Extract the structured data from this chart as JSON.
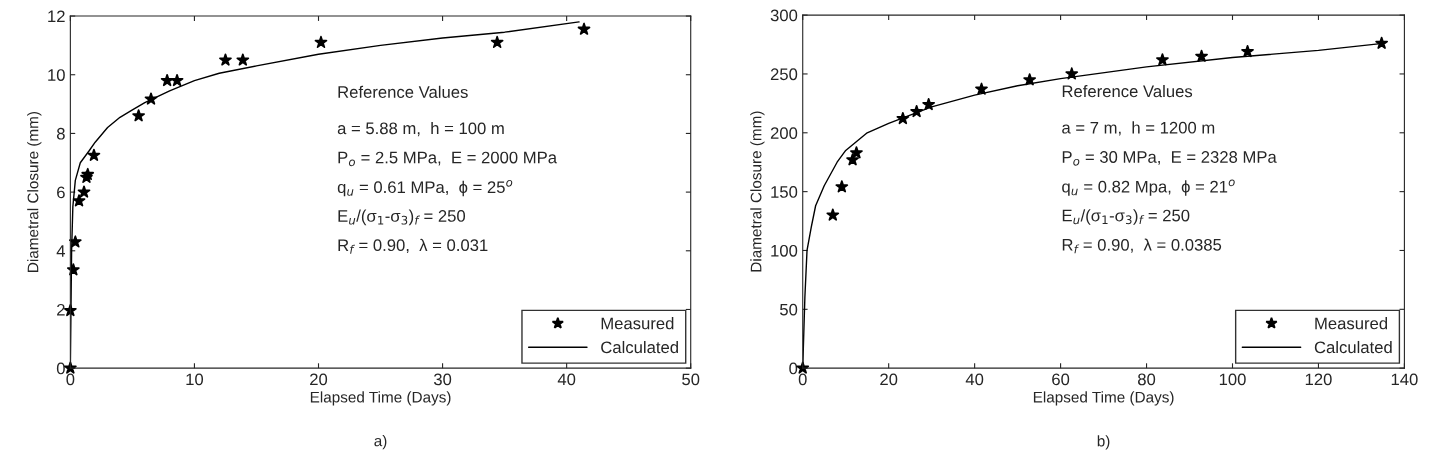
{
  "chart_data": [
    {
      "type": "scatter",
      "xlabel": "Elapsed Time (Days)",
      "ylabel": "Diametral Closure (mm)",
      "xlim": [
        0,
        50
      ],
      "xticks": [
        0,
        10,
        20,
        30,
        40,
        50
      ],
      "ylim": [
        0,
        12
      ],
      "yticks": [
        0,
        2,
        4,
        6,
        8,
        10,
        12
      ],
      "grid": false,
      "legend": "bottom right",
      "series": [
        {
          "name": "Measured",
          "marker": "star",
          "color": "#000000",
          "x": [
            0,
            0,
            0.24,
            0.4,
            0.7,
            1.1,
            1.3,
            1.4,
            1.9,
            5.5,
            6.5,
            7.8,
            8.6,
            12.5,
            13.9,
            20.2,
            34.4,
            41.4
          ],
          "values": [
            0,
            1.96,
            3.35,
            4.3,
            5.7,
            6.0,
            6.5,
            6.6,
            7.25,
            8.6,
            9.17,
            9.8,
            9.8,
            10.5,
            10.5,
            11.1,
            11.1,
            11.55
          ]
        },
        {
          "name": "Calculated",
          "type": "line",
          "marker": "none",
          "line_style": "solid",
          "color": "#000000",
          "x": [
            0,
            0.1,
            0.2,
            0.4,
            0.8,
            1.5,
            2,
            3,
            4,
            5,
            6,
            8,
            10,
            12,
            15,
            20,
            25,
            30,
            35,
            41
          ],
          "values": [
            0,
            4.0,
            5.5,
            6.4,
            7.0,
            7.4,
            7.7,
            8.2,
            8.55,
            8.8,
            9.05,
            9.45,
            9.8,
            10.05,
            10.3,
            10.7,
            11.0,
            11.25,
            11.45,
            11.8
          ]
        }
      ],
      "annotations": [
        "Reference Values",
        "a = 5.88 m,  h = 100 m",
        "P$_{o}$ = 2.5 MPa,  E = 2000 MPa",
        "q$_{u}$ = 0.61 MPa,  ϕ = 25$^{o}$",
        "E$_{u}$/(σ$_{1}$-σ$_{3}$)$_{f}$ = 250",
        "R$_{f}$ = 0.90,  λ = 0.031",
        "a)"
      ]
    },
    {
      "type": "scatter",
      "xlabel": "Elapsed Time (Days)",
      "ylabel": "Diametral Closure (mm)",
      "xlim": [
        0,
        140
      ],
      "xticks": [
        0,
        20,
        40,
        60,
        80,
        100,
        120,
        140
      ],
      "ylim": [
        0,
        300
      ],
      "yticks": [
        0,
        50,
        100,
        150,
        200,
        250,
        300
      ],
      "grid": false,
      "legend": "bottom right",
      "series": [
        {
          "name": "Measured",
          "marker": "star",
          "color": "#000000",
          "x": [
            0,
            7.0,
            9.1,
            11.6,
            12.5,
            23.3,
            26.5,
            29.3,
            41.6,
            52.8,
            62.6,
            83.7,
            92.8,
            103.5,
            134.7
          ],
          "values": [
            0,
            130,
            154,
            177,
            183,
            212,
            218,
            224,
            237,
            245,
            250,
            262,
            265,
            269,
            276
          ]
        },
        {
          "name": "Calculated",
          "type": "line",
          "marker": "none",
          "line_style": "solid",
          "color": "#000000",
          "x": [
            0,
            0.5,
            1,
            2,
            3,
            5,
            8,
            10,
            15,
            20,
            30,
            40,
            50,
            60,
            80,
            100,
            120,
            135
          ],
          "values": [
            0,
            60,
            100,
            120,
            138,
            155,
            175,
            185,
            200,
            208,
            222,
            232,
            240,
            246,
            256,
            264,
            270,
            276
          ]
        }
      ],
      "annotations": [
        "Reference Values",
        "a = 7 m,  h = 1200 m",
        "P$_{o}$ = 30 MPa,  E = 2328 MPa",
        "q$_{u}$ = 0.82 Mpa,  ϕ = 21$^{o}$",
        "E$_{u}$/(σ$_{1}$-σ$_{3}$)$_{f}$ = 250",
        "R$_{f}$ = 0.90,  λ = 0.0385",
        "b)"
      ]
    }
  ]
}
